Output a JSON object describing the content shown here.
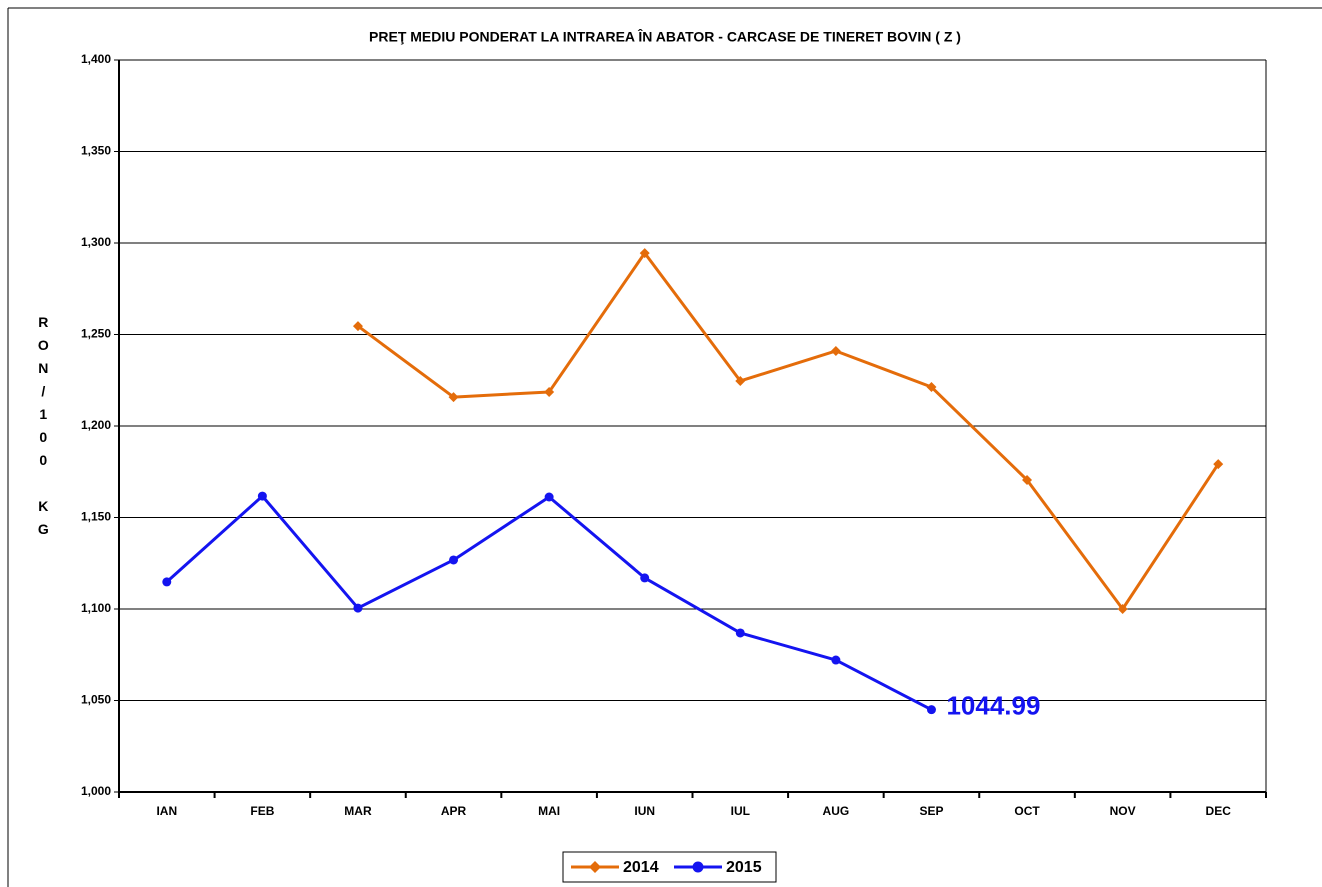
{
  "chart_data": {
    "type": "line",
    "title": "PREŢ MEDIU PONDERAT LA INTRAREA ÎN ABATOR - CARCASE DE TINERET BOVIN ( Z )",
    "y_label": "RON/100 KG",
    "categories": [
      "IAN",
      "FEB",
      "MAR",
      "APR",
      "MAI",
      "IUN",
      "IUL",
      "AUG",
      "SEP",
      "OCT",
      "NOV",
      "DEC"
    ],
    "series": [
      {
        "name": "2014",
        "color": "#e46c0a",
        "marker": "diamond",
        "values": [
          null,
          null,
          1254.6,
          1215.8,
          1218.6,
          1294.5,
          1224.6,
          1241,
          1221.3,
          1170.5,
          1100,
          1179.2
        ]
      },
      {
        "name": "2015",
        "color": "#1414f0",
        "marker": "circle",
        "values": [
          1114.8,
          1161.7,
          1100.5,
          1126.8,
          1161.2,
          1117,
          1086.9,
          1072.1,
          1044.99,
          null,
          null,
          null
        ],
        "value_labels": [
          null,
          null,
          null,
          null,
          null,
          null,
          null,
          null,
          "1044.99",
          null,
          null,
          null
        ]
      }
    ],
    "ylim": [
      1000,
      1400
    ],
    "yticks": [
      {
        "value": 1000,
        "label": "1,000"
      },
      {
        "value": 1050,
        "label": "1,050"
      },
      {
        "value": 1100,
        "label": "1,100"
      },
      {
        "value": 1150,
        "label": "1,150"
      },
      {
        "value": 1200,
        "label": "1,200"
      },
      {
        "value": 1250,
        "label": "1,250"
      },
      {
        "value": 1300,
        "label": "1,300"
      },
      {
        "value": 1350,
        "label": "1,350"
      },
      {
        "value": 1400,
        "label": "1,400"
      }
    ],
    "grid": true,
    "legend": "bottom"
  }
}
